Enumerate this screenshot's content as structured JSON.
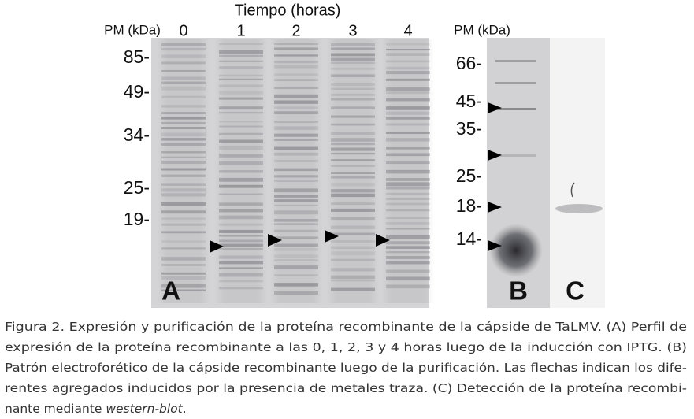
{
  "figure": {
    "time_heading": "Tiempo (horas)",
    "pm_label_a": "PM (kDa)",
    "pm_label_b": "PM (kDa)",
    "lanes": [
      "0",
      "1",
      "2",
      "3",
      "4"
    ],
    "markers_a": [
      "85-",
      "49-",
      "34-",
      "25-",
      "19-"
    ],
    "markers_b": [
      "66-",
      "45-",
      "35-",
      "25-",
      "18-",
      "14-"
    ],
    "panels": [
      "A",
      "B",
      "C"
    ]
  },
  "caption": {
    "lines": [
      "Figura 2. Expresión y purificación de la proteína recombinante de la cápside de TaLMV. (A) Perfil de",
      "expresión de la proteína recombinante a las 0, 1, 2, 3 y 4 horas luego de la inducción con IPTG. (B)",
      "Patrón electroforético de la cápside recombinante luego de la purificación. Las flechas indican los dife-",
      "rentes agregados inducidos por la presencia de metales traza. (C) Detección de la proteína recombi-"
    ],
    "last_start": "nante mediante ",
    "last_italic": "western-blot",
    "last_end": "."
  }
}
